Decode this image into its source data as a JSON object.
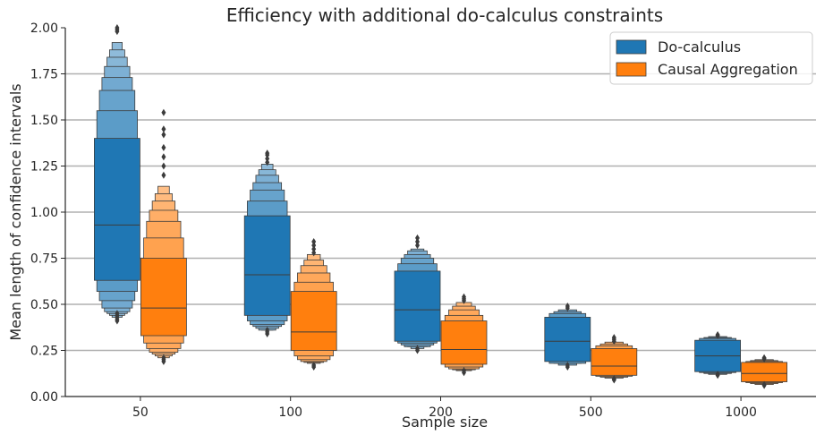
{
  "chart_data": {
    "type": "boxen",
    "title": "Efficiency with additional do-calculus constraints",
    "xlabel": "Sample size",
    "ylabel": "Mean length of confidence intervals",
    "categories": [
      "50",
      "100",
      "200",
      "500",
      "1000"
    ],
    "ylim": [
      0,
      2.0
    ],
    "yticks": [
      "0.00",
      "0.25",
      "0.50",
      "0.75",
      "1.00",
      "1.25",
      "1.50",
      "1.75",
      "2.00"
    ],
    "grid": "horizontal",
    "legend": {
      "placement": "top-right"
    },
    "series": [
      {
        "name": "Do-calculus",
        "color": "#1f77b4",
        "boxes": [
          {
            "median": 0.93,
            "levels": [
              [
                0.63,
                1.4
              ],
              [
                0.57,
                1.55
              ],
              [
                0.52,
                1.66
              ],
              [
                0.48,
                1.73
              ],
              [
                0.46,
                1.79
              ],
              [
                0.45,
                1.84
              ],
              [
                0.44,
                1.88
              ],
              [
                0.43,
                1.92
              ]
            ],
            "outliers": [
              0.41,
              0.42,
              0.43,
              0.44,
              0.45,
              1.98,
              1.99,
              2.0
            ]
          },
          {
            "median": 0.66,
            "levels": [
              [
                0.44,
                0.98
              ],
              [
                0.41,
                1.06
              ],
              [
                0.39,
                1.12
              ],
              [
                0.38,
                1.16
              ],
              [
                0.37,
                1.2
              ],
              [
                0.36,
                1.23
              ],
              [
                0.36,
                1.26
              ]
            ],
            "outliers": [
              0.34,
              0.35,
              0.36,
              1.27,
              1.29,
              1.31,
              1.32
            ]
          },
          {
            "median": 0.47,
            "levels": [
              [
                0.3,
                0.68
              ],
              [
                0.29,
                0.72
              ],
              [
                0.28,
                0.75
              ],
              [
                0.27,
                0.77
              ],
              [
                0.27,
                0.79
              ],
              [
                0.26,
                0.8
              ]
            ],
            "outliers": [
              0.25,
              0.26,
              0.82,
              0.84,
              0.86
            ]
          },
          {
            "median": 0.3,
            "levels": [
              [
                0.19,
                0.43
              ],
              [
                0.18,
                0.45
              ],
              [
                0.18,
                0.46
              ],
              [
                0.17,
                0.47
              ]
            ],
            "outliers": [
              0.16,
              0.17,
              0.48,
              0.49
            ]
          },
          {
            "median": 0.22,
            "levels": [
              [
                0.135,
                0.305
              ],
              [
                0.13,
                0.315
              ],
              [
                0.125,
                0.32
              ],
              [
                0.12,
                0.325
              ]
            ],
            "outliers": [
              0.115,
              0.12,
              0.33,
              0.335
            ]
          }
        ]
      },
      {
        "name": "Causal Aggregation",
        "color": "#ff7f0e",
        "boxes": [
          {
            "median": 0.48,
            "levels": [
              [
                0.33,
                0.75
              ],
              [
                0.29,
                0.86
              ],
              [
                0.26,
                0.95
              ],
              [
                0.24,
                1.01
              ],
              [
                0.23,
                1.06
              ],
              [
                0.22,
                1.1
              ],
              [
                0.21,
                1.14
              ]
            ],
            "outliers": [
              0.19,
              0.2,
              0.21,
              1.2,
              1.25,
              1.3,
              1.35,
              1.42,
              1.45,
              1.54
            ]
          },
          {
            "median": 0.35,
            "levels": [
              [
                0.25,
                0.57
              ],
              [
                0.22,
                0.62
              ],
              [
                0.2,
                0.67
              ],
              [
                0.19,
                0.71
              ],
              [
                0.185,
                0.74
              ],
              [
                0.18,
                0.77
              ]
            ],
            "outliers": [
              0.16,
              0.17,
              0.78,
              0.8,
              0.82,
              0.84
            ]
          },
          {
            "median": 0.255,
            "levels": [
              [
                0.175,
                0.41
              ],
              [
                0.16,
                0.44
              ],
              [
                0.15,
                0.47
              ],
              [
                0.145,
                0.49
              ],
              [
                0.14,
                0.51
              ]
            ],
            "outliers": [
              0.13,
              0.14,
              0.52,
              0.53,
              0.54
            ]
          },
          {
            "median": 0.165,
            "levels": [
              [
                0.115,
                0.26
              ],
              [
                0.11,
                0.275
              ],
              [
                0.105,
                0.285
              ],
              [
                0.1,
                0.295
              ]
            ],
            "outliers": [
              0.09,
              0.095,
              0.3,
              0.31,
              0.32
            ]
          },
          {
            "median": 0.125,
            "levels": [
              [
                0.08,
                0.185
              ],
              [
                0.075,
                0.19
              ],
              [
                0.07,
                0.195
              ],
              [
                0.065,
                0.2
              ]
            ],
            "outliers": [
              0.06,
              0.065,
              0.205,
              0.21
            ]
          }
        ]
      }
    ]
  }
}
